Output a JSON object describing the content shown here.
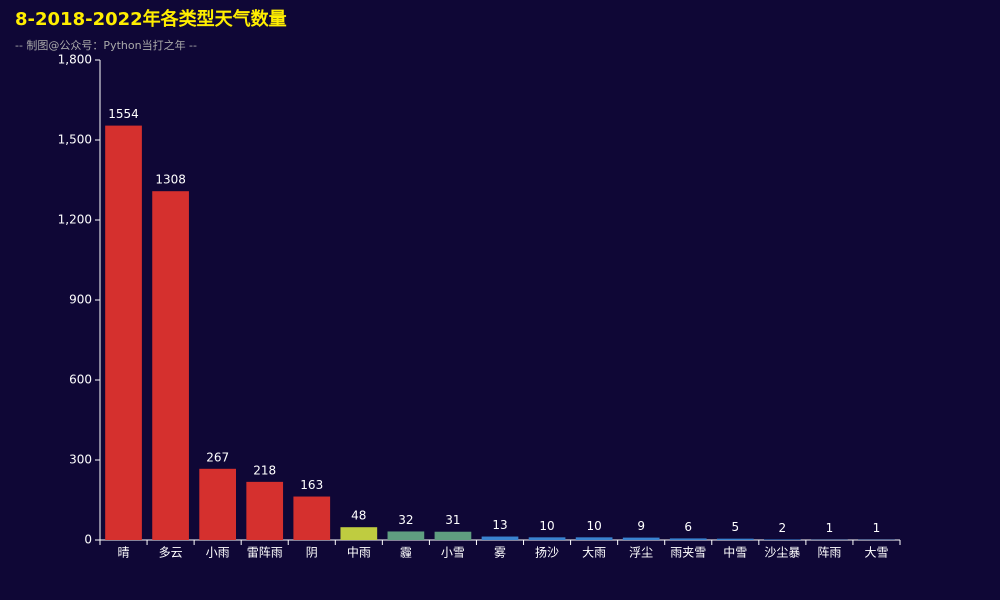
{
  "chart_data": {
    "type": "bar",
    "title": "8-2018-2022年各类型天气数量",
    "subtitle": "-- 制图@公众号：Python当打之年 --",
    "categories": [
      "晴",
      "多云",
      "小雨",
      "雷阵雨",
      "阴",
      "中雨",
      "霾",
      "小雪",
      "雾",
      "扬沙",
      "大雨",
      "浮尘",
      "雨夹雪",
      "中雪",
      "沙尘暴",
      "阵雨",
      "大雪"
    ],
    "values": [
      1554,
      1308,
      267,
      218,
      163,
      48,
      32,
      31,
      13,
      10,
      10,
      9,
      6,
      5,
      2,
      1,
      1
    ],
    "colors": [
      "#d5302e",
      "#d5302e",
      "#d5302e",
      "#d5302e",
      "#d5302e",
      "#bfcc40",
      "#5f9e80",
      "#5f9e80",
      "#3a83d0",
      "#3a83d0",
      "#3a83d0",
      "#3a83d0",
      "#3a83d0",
      "#3a83d0",
      "#3a83d0",
      "#3a83d0",
      "#3a83d0"
    ],
    "ylim": [
      0,
      1800
    ],
    "yticks": [
      0,
      300,
      600,
      900,
      {
        "value": 1200,
        "label": "1,200"
      },
      {
        "value": 1500,
        "label": "1,500"
      },
      {
        "value": 1800,
        "label": "1,800"
      }
    ],
    "grid": false
  }
}
